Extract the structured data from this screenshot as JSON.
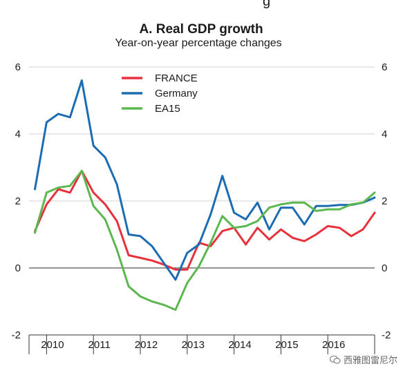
{
  "chart_data": {
    "type": "line",
    "title": "A. Real GDP growth",
    "subtitle": "Year-on-year percentage changes",
    "header_fragment": "g",
    "ylim": [
      -2,
      6
    ],
    "yticks": [
      -2,
      0,
      2,
      4,
      6
    ],
    "yticks_right": [
      -2,
      0,
      2,
      4,
      6
    ],
    "xlim": [
      2009.625,
      2017.0
    ],
    "year_labels": [
      "2010",
      "2011",
      "2012",
      "2013",
      "2014",
      "2015",
      "2016"
    ],
    "grid": true,
    "legend_position": "top-left",
    "x": [
      2009.75,
      2010.0,
      2010.25,
      2010.5,
      2010.75,
      2011.0,
      2011.25,
      2011.5,
      2011.75,
      2012.0,
      2012.25,
      2012.5,
      2012.75,
      2013.0,
      2013.25,
      2013.5,
      2013.75,
      2014.0,
      2014.25,
      2014.5,
      2014.75,
      2015.0,
      2015.25,
      2015.5,
      2015.75,
      2016.0,
      2016.25,
      2016.5,
      2016.75,
      2017.0
    ],
    "series": [
      {
        "name": "FRANCE",
        "color": "#e8313b",
        "values": [
          1.1,
          1.9,
          2.35,
          2.25,
          2.9,
          2.25,
          1.9,
          1.4,
          0.38,
          0.3,
          0.22,
          0.1,
          -0.05,
          -0.05,
          0.75,
          0.65,
          1.1,
          1.2,
          0.7,
          1.2,
          0.85,
          1.15,
          0.9,
          0.8,
          1.0,
          1.25,
          1.2,
          0.95,
          1.15,
          1.65
        ]
      },
      {
        "name": "Germany",
        "color": "#1c6cb3",
        "values": [
          2.35,
          4.35,
          4.6,
          4.5,
          5.6,
          3.65,
          3.3,
          2.5,
          1.0,
          0.95,
          0.65,
          0.15,
          -0.35,
          0.45,
          0.7,
          1.6,
          2.75,
          1.65,
          1.45,
          1.95,
          1.15,
          1.8,
          1.8,
          1.3,
          1.85,
          1.85,
          1.88,
          1.88,
          1.95,
          2.1
        ]
      },
      {
        "name": "EA15",
        "color": "#5bb84e",
        "values": [
          1.05,
          2.25,
          2.4,
          2.45,
          2.9,
          1.85,
          1.45,
          0.55,
          -0.55,
          -0.85,
          -1.0,
          -1.1,
          -1.25,
          -0.45,
          0.05,
          0.75,
          1.55,
          1.2,
          1.25,
          1.4,
          1.8,
          1.9,
          1.95,
          1.95,
          1.7,
          1.75,
          1.75,
          1.9,
          1.95,
          2.25
        ]
      }
    ]
  },
  "watermark": {
    "text": "西雅图雷尼尔",
    "icon": "wechat-icon"
  }
}
